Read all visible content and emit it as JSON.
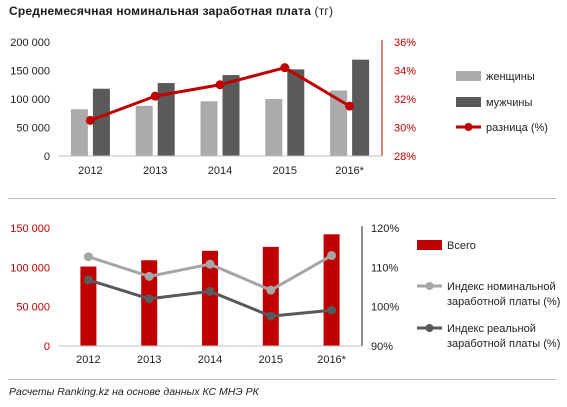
{
  "title": {
    "main": "Среднемесячная номинальная заработная плата",
    "unit": "(тг)"
  },
  "caption": "Расчеты Ranking.kz на основе данных КС МНЭ РК",
  "chart_data": [
    {
      "type": "bar",
      "categories": [
        "2012",
        "2013",
        "2014",
        "2015",
        "2016*"
      ],
      "ylim": [
        0,
        200000
      ],
      "yticks": [
        "0",
        "50 000",
        "100 000",
        "150 000",
        "200 000"
      ],
      "y2lim": [
        28,
        36
      ],
      "y2ticks": [
        "28%",
        "30%",
        "32%",
        "34%",
        "36%"
      ],
      "series": [
        {
          "name": "женщины",
          "kind": "bar",
          "axis": "left",
          "color": "#ababab",
          "values": [
            82000,
            88000,
            96000,
            100000,
            115000
          ]
        },
        {
          "name": "мужчины",
          "kind": "bar",
          "axis": "left",
          "color": "#5a5a5a",
          "values": [
            118000,
            128000,
            142000,
            152000,
            169000
          ]
        },
        {
          "name": "разница (%)",
          "kind": "line",
          "axis": "right",
          "color": "#c00000",
          "values": [
            30.5,
            32.2,
            33.0,
            34.2,
            31.5
          ]
        }
      ]
    },
    {
      "type": "bar",
      "categories": [
        "2012",
        "2013",
        "2014",
        "2015",
        "2016*"
      ],
      "ylim": [
        0,
        150000
      ],
      "yticks": [
        "0",
        "50 000",
        "100 000",
        "150 000"
      ],
      "y2lim": [
        90,
        120
      ],
      "y2ticks": [
        "90%",
        "100%",
        "110%",
        "120%"
      ],
      "series": [
        {
          "name": "Всего",
          "kind": "bar",
          "axis": "left",
          "color": "#c00000",
          "values": [
            101000,
            109000,
            121000,
            126000,
            142000
          ]
        },
        {
          "name": "Индекс номинальной заработной платы (%)",
          "legend_lines": [
            "Индекс номинальной",
            "заработной платы (%)"
          ],
          "kind": "line",
          "axis": "right",
          "color": "#a6a6a6",
          "values": [
            112.7,
            107.7,
            110.8,
            104.2,
            113.0
          ]
        },
        {
          "name": "Индекс реальной заработной платы (%)",
          "legend_lines": [
            "Индекс реальной",
            "заработной платы (%)"
          ],
          "kind": "line",
          "axis": "right",
          "color": "#595959",
          "values": [
            106.8,
            102.0,
            103.9,
            97.6,
            99.1
          ]
        }
      ]
    }
  ]
}
